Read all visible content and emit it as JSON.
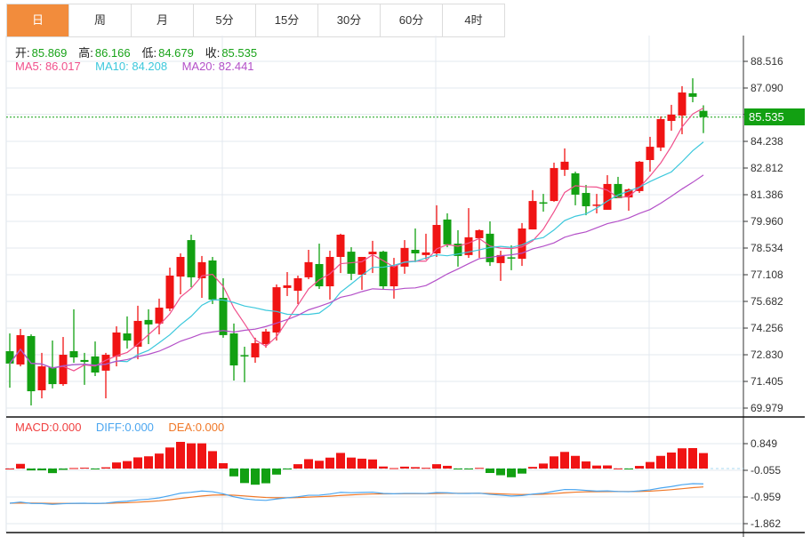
{
  "tabs": [
    {
      "label": "日",
      "active": true
    },
    {
      "label": "周"
    },
    {
      "label": "月"
    },
    {
      "label": "5分"
    },
    {
      "label": "15分"
    },
    {
      "label": "30分"
    },
    {
      "label": "60分"
    },
    {
      "label": "4时"
    }
  ],
  "ohlc_info": {
    "open_label": "开:",
    "open": "85.869",
    "high_label": "高:",
    "high": "86.166",
    "low_label": "低:",
    "low": "84.679",
    "close_label": "收:",
    "close": "85.535"
  },
  "ma_info": {
    "ma5": "MA5: 86.017",
    "ma10": "MA10: 84.208",
    "ma20": "MA20: 82.441"
  },
  "macd_info": {
    "macd": "MACD:0.000",
    "diff": "DIFF:0.000",
    "dea": "DEA:0.000"
  },
  "price_axis": [
    "88.516",
    "87.090",
    "85.682",
    "84.238",
    "82.812",
    "81.386",
    "79.960",
    "78.534",
    "77.108",
    "75.682",
    "74.256",
    "72.830",
    "71.405",
    "69.979"
  ],
  "price_axis_values": [
    88.516,
    87.09,
    85.682,
    84.238,
    82.812,
    81.386,
    79.96,
    78.534,
    77.108,
    75.682,
    74.256,
    72.83,
    71.405,
    69.979
  ],
  "last_price": "85.535",
  "macd_axis": [
    "0.849",
    "-0.055",
    "-0.959",
    "-1.862"
  ],
  "colors": {
    "up": "#f01414",
    "down": "#12a012",
    "ma5": "#f0508c",
    "ma10": "#3cc8dc",
    "ma20": "#b450c8",
    "diff": "#4ba6f0",
    "dea": "#f07828",
    "active_tab": "#f28c3c"
  },
  "chart_data": {
    "type": "candlestick",
    "ylim": [
      69.979,
      88.516
    ],
    "candles": [
      [
        73.02,
        73.97,
        71.07,
        72.36
      ],
      [
        72.31,
        74.21,
        72.21,
        73.88
      ],
      [
        73.83,
        73.92,
        70.12,
        70.88
      ],
      [
        70.93,
        72.93,
        70.5,
        72.21
      ],
      [
        72.17,
        73.59,
        71.03,
        71.26
      ],
      [
        71.26,
        73.78,
        71.17,
        72.83
      ],
      [
        73.02,
        75.26,
        72.4,
        72.69
      ],
      [
        72.55,
        72.93,
        71.22,
        72.45
      ],
      [
        72.74,
        73.54,
        71.69,
        71.88
      ],
      [
        71.98,
        72.93,
        70.5,
        72.83
      ],
      [
        72.74,
        74.35,
        72.21,
        74.02
      ],
      [
        73.97,
        74.88,
        73.16,
        73.59
      ],
      [
        73.26,
        75.45,
        72.59,
        74.64
      ],
      [
        74.69,
        75.26,
        73.4,
        74.45
      ],
      [
        74.5,
        75.83,
        73.92,
        75.35
      ],
      [
        75.3,
        77.49,
        75.16,
        77.06
      ],
      [
        77.01,
        78.25,
        76.06,
        78.06
      ],
      [
        78.96,
        79.25,
        76.44,
        76.97
      ],
      [
        76.92,
        78.11,
        75.87,
        77.78
      ],
      [
        77.87,
        78.06,
        75.54,
        75.78
      ],
      [
        75.87,
        76.92,
        73.74,
        73.88
      ],
      [
        73.97,
        74.5,
        71.45,
        72.26
      ],
      [
        72.81,
        73.26,
        71.36,
        72.76
      ],
      [
        72.69,
        73.74,
        72.4,
        73.45
      ],
      [
        73.4,
        74.21,
        73.21,
        74.07
      ],
      [
        74.02,
        76.59,
        73.59,
        76.44
      ],
      [
        76.4,
        77.25,
        75.97,
        76.54
      ],
      [
        76.25,
        77.06,
        75.54,
        76.92
      ],
      [
        76.97,
        78.44,
        76.87,
        77.78
      ],
      [
        77.68,
        78.77,
        76.35,
        76.49
      ],
      [
        76.49,
        78.39,
        75.78,
        78.06
      ],
      [
        78.06,
        79.3,
        77.2,
        79.25
      ],
      [
        78.34,
        78.58,
        76.82,
        77.16
      ],
      [
        77.11,
        78.06,
        76.3,
        78.06
      ],
      [
        78.2,
        78.92,
        77.2,
        78.34
      ],
      [
        78.34,
        78.39,
        76.35,
        76.49
      ],
      [
        76.49,
        78.01,
        75.83,
        77.58
      ],
      [
        77.54,
        78.96,
        77.16,
        78.54
      ],
      [
        78.44,
        79.58,
        77.78,
        78.25
      ],
      [
        78.16,
        79.3,
        77.92,
        78.3
      ],
      [
        78.25,
        80.82,
        78.06,
        79.77
      ],
      [
        80.06,
        80.39,
        78.58,
        78.73
      ],
      [
        78.77,
        79.49,
        77.54,
        78.11
      ],
      [
        78.16,
        80.67,
        78.01,
        79.11
      ],
      [
        79.06,
        79.53,
        78.01,
        79.49
      ],
      [
        79.3,
        79.96,
        77.58,
        77.78
      ],
      [
        77.73,
        78.39,
        76.78,
        78.16
      ],
      [
        78.04,
        78.68,
        77.35,
        77.99
      ],
      [
        77.96,
        79.87,
        77.58,
        79.58
      ],
      [
        79.53,
        81.63,
        79.53,
        81.05
      ],
      [
        80.98,
        81.43,
        80.48,
        80.94
      ],
      [
        81.05,
        83.1,
        81.01,
        82.81
      ],
      [
        82.72,
        83.86,
        82.39,
        83.15
      ],
      [
        82.53,
        82.62,
        80.82,
        81.39
      ],
      [
        81.48,
        81.91,
        80.29,
        80.77
      ],
      [
        80.82,
        81.43,
        80.39,
        80.86
      ],
      [
        80.58,
        82.43,
        80.58,
        81.96
      ],
      [
        81.96,
        82.34,
        81.2,
        81.2
      ],
      [
        81.24,
        81.72,
        80.53,
        81.67
      ],
      [
        81.58,
        83.19,
        81.48,
        83.15
      ],
      [
        83.24,
        84.48,
        82.62,
        83.95
      ],
      [
        83.91,
        85.57,
        83.72,
        85.43
      ],
      [
        85.33,
        86.19,
        84.81,
        85.67
      ],
      [
        85.62,
        87.19,
        84.62,
        86.85
      ],
      [
        86.81,
        87.61,
        86.33,
        86.62
      ],
      [
        85.869,
        86.166,
        84.679,
        85.535
      ]
    ],
    "ma_periods": [
      5,
      10,
      20
    ],
    "macd_params": [
      12,
      26,
      9
    ]
  }
}
